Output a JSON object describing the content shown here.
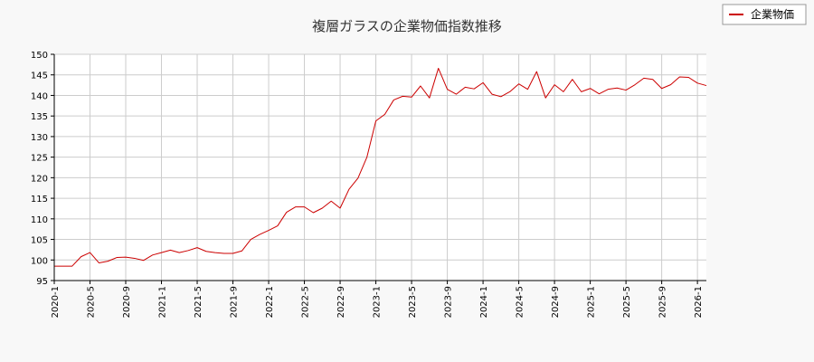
{
  "colors": {
    "background": "#f8f8f8",
    "plot_background": "#ffffff",
    "grid": "#cccccc",
    "axis": "#000000",
    "series": "#cc0000"
  },
  "chart_data": {
    "type": "line",
    "title": "複層ガラスの企業物価指数推移",
    "xlabel": "",
    "ylabel": "",
    "ylim": [
      95,
      150
    ],
    "yticks": [
      95,
      100,
      105,
      110,
      115,
      120,
      125,
      130,
      135,
      140,
      145,
      150
    ],
    "xlim": [
      "2020-01",
      "2026-02"
    ],
    "xticks": [
      "2020-1",
      "2020-5",
      "2020-9",
      "2021-1",
      "2021-5",
      "2021-9",
      "2022-1",
      "2022-5",
      "2022-9",
      "2023-1",
      "2023-5",
      "2023-9",
      "2024-1",
      "2024-5",
      "2024-9",
      "2025-1",
      "2025-5",
      "2025-9",
      "2026-1"
    ],
    "grid": true,
    "legend_position": "top-right",
    "series": [
      {
        "name": "企業物価",
        "color": "#cc0000",
        "x": [
          "2020-01",
          "2020-02",
          "2020-03",
          "2020-04",
          "2020-05",
          "2020-06",
          "2020-07",
          "2020-08",
          "2020-09",
          "2020-10",
          "2020-11",
          "2020-12",
          "2021-01",
          "2021-02",
          "2021-03",
          "2021-04",
          "2021-05",
          "2021-06",
          "2021-07",
          "2021-08",
          "2021-09",
          "2021-10",
          "2021-11",
          "2021-12",
          "2022-01",
          "2022-02",
          "2022-03",
          "2022-04",
          "2022-05",
          "2022-06",
          "2022-07",
          "2022-08",
          "2022-09",
          "2022-10",
          "2022-11",
          "2022-12",
          "2023-01",
          "2023-02",
          "2023-03",
          "2023-04",
          "2023-05",
          "2023-06",
          "2023-07",
          "2023-08",
          "2023-09",
          "2023-10",
          "2023-11",
          "2023-12",
          "2024-01",
          "2024-02",
          "2024-03",
          "2024-04",
          "2024-05",
          "2024-06",
          "2024-07",
          "2024-08",
          "2024-09",
          "2024-10",
          "2024-11",
          "2024-12",
          "2025-01",
          "2025-02",
          "2025-03",
          "2025-04",
          "2025-05",
          "2025-06",
          "2025-07",
          "2025-08",
          "2025-09",
          "2025-10",
          "2025-11",
          "2025-12",
          "2026-01",
          "2026-02"
        ],
        "values": [
          98.5,
          98.5,
          98.5,
          100.8,
          101.8,
          99.3,
          99.7,
          100.6,
          100.7,
          100.4,
          99.9,
          101.2,
          101.8,
          102.4,
          101.8,
          102.3,
          103.0,
          102.1,
          101.8,
          101.6,
          101.6,
          102.2,
          105.0,
          106.2,
          107.2,
          108.3,
          111.6,
          112.9,
          112.9,
          111.5,
          112.6,
          114.3,
          112.6,
          117.2,
          119.9,
          125.0,
          133.8,
          135.4,
          138.9,
          139.8,
          139.6,
          142.3,
          139.4,
          146.6,
          141.5,
          140.3,
          142.0,
          141.6,
          143.1,
          140.3,
          139.7,
          140.9,
          142.8,
          141.5,
          145.8,
          139.4,
          142.6,
          140.9,
          143.9,
          140.9,
          141.7,
          140.4,
          141.5,
          141.8,
          141.3,
          142.6,
          144.2,
          143.9,
          141.7,
          142.6,
          144.5,
          144.4,
          143.0,
          142.4
        ]
      }
    ]
  }
}
